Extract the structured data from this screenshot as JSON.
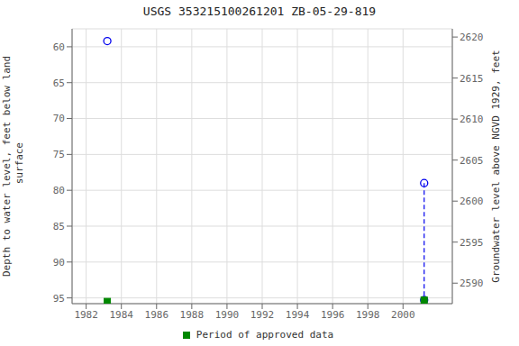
{
  "chart_data": {
    "type": "scatter",
    "title": "USGS 353215100261201 ZB-05-29-819",
    "y_label": "Depth to water level, feet below land\n surface",
    "y2_label": "Groundwater level above NGVD 1929, feet",
    "xlim": [
      1981.2,
      2002.8
    ],
    "xticks": [
      1982,
      1984,
      1986,
      1988,
      1990,
      1992,
      1994,
      1996,
      1998,
      2000
    ],
    "ylim": [
      95.8,
      57.5
    ],
    "yticks": [
      60,
      65,
      70,
      75,
      80,
      85,
      90,
      95
    ],
    "y2lim": [
      2587.5,
      2621.0
    ],
    "y2ticks": [
      2590,
      2595,
      2600,
      2605,
      2610,
      2615,
      2620
    ],
    "grid": true,
    "legend": "lower center",
    "series": [
      {
        "type": "line",
        "color": "#0000EE",
        "line_style": "dashed",
        "x": [
          2001.2,
          2001.2
        ],
        "values": [
          79.0,
          95.3
        ]
      },
      {
        "type": "scatter",
        "color": "#0000EE",
        "marker": "circle",
        "x": [
          1983.2,
          2001.2,
          2001.2
        ],
        "values": [
          59.2,
          79.0,
          95.3
        ]
      },
      {
        "type": "scatter",
        "name": "Period of approved data",
        "color": "#008800",
        "marker": "square",
        "x": [
          1983.2,
          2001.2
        ],
        "values": [
          95.5,
          95.3
        ]
      }
    ]
  }
}
